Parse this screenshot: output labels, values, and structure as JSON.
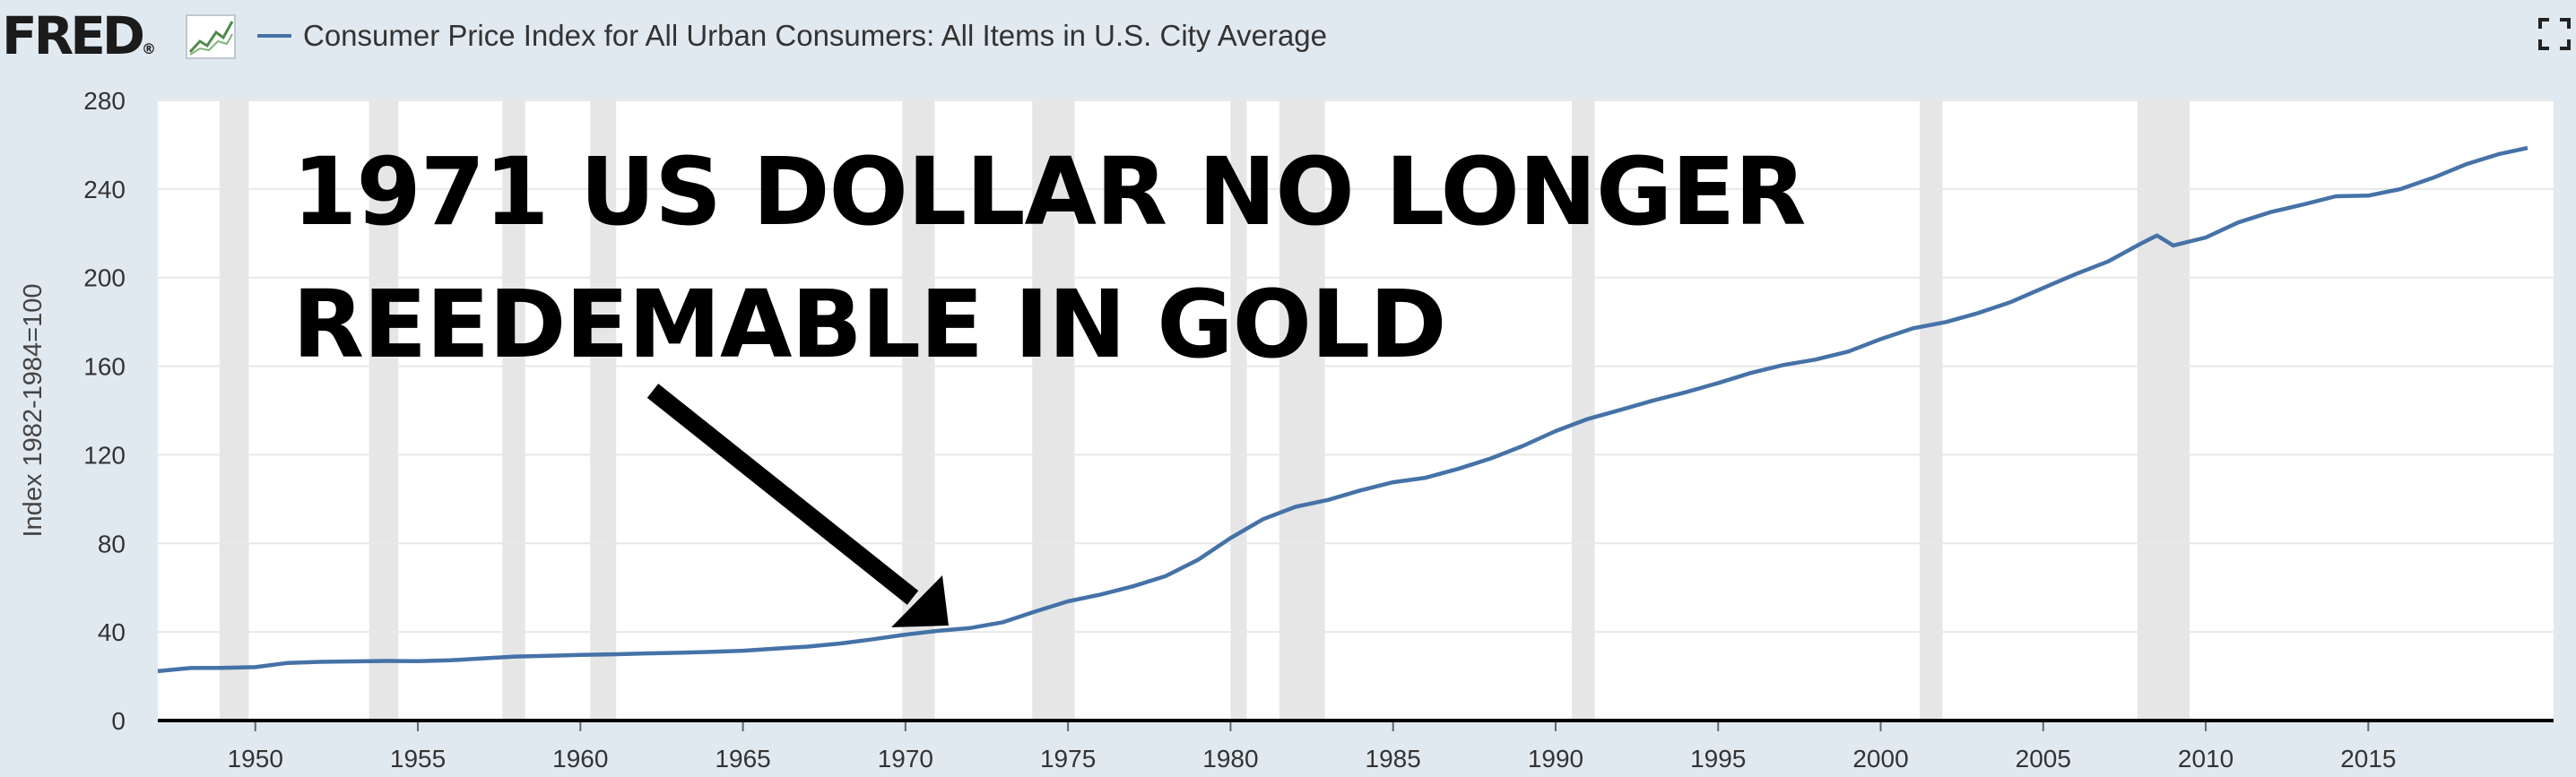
{
  "header": {
    "logo_text": "FRED",
    "logo_mark": "®",
    "logo_icon": "line-graph-icon",
    "series_title": "Consumer Price Index for All Urban Consumers: All Items in U.S. City Average",
    "fullscreen_icon": "fullscreen-icon"
  },
  "annotation": {
    "text": "1971 US DOLLAR NO LONGER REEDEMABLE IN GOLD",
    "arrow_icon": "arrow-icon"
  },
  "colors": {
    "background": "#e1e9f0",
    "plot_background": "#ffffff",
    "series": "#4572a7",
    "recession": "#e6e6e6",
    "annotation": "#000000"
  },
  "chart_data": {
    "type": "line",
    "title": "Consumer Price Index for All Urban Consumers: All Items in U.S. City Average",
    "ylabel": "Index 1982-1984=100",
    "xlabel": "",
    "xlim": [
      1947,
      2020
    ],
    "ylim": [
      0,
      280
    ],
    "y_ticks": [
      0,
      40,
      80,
      120,
      160,
      200,
      240,
      280
    ],
    "x_ticks": [
      1950,
      1955,
      1960,
      1965,
      1970,
      1975,
      1980,
      1985,
      1990,
      1995,
      2000,
      2005,
      2010,
      2015
    ],
    "grid": "horizontal",
    "legend": "top-left",
    "series": [
      {
        "name": "Consumer Price Index for All Urban Consumers: All Items in U.S. City Average",
        "x": [
          1947,
          1948,
          1949,
          1950,
          1951,
          1952,
          1953,
          1954,
          1955,
          1956,
          1957,
          1958,
          1959,
          1960,
          1961,
          1962,
          1963,
          1964,
          1965,
          1966,
          1967,
          1968,
          1969,
          1970,
          1971,
          1972,
          1973,
          1974,
          1975,
          1976,
          1977,
          1978,
          1979,
          1980,
          1981,
          1982,
          1983,
          1984,
          1985,
          1986,
          1987,
          1988,
          1989,
          1990,
          1991,
          1992,
          1993,
          1994,
          1995,
          1996,
          1997,
          1998,
          1999,
          2000,
          2001,
          2002,
          2003,
          2004,
          2005,
          2006,
          2007,
          2008,
          2008.5,
          2009,
          2010,
          2011,
          2012,
          2013,
          2014,
          2015,
          2016,
          2017,
          2018,
          2019,
          2019.9
        ],
        "values": [
          22.3,
          23.7,
          23.8,
          24.1,
          26.0,
          26.5,
          26.7,
          26.9,
          26.8,
          27.2,
          28.1,
          28.9,
          29.2,
          29.6,
          29.9,
          30.3,
          30.6,
          31.0,
          31.5,
          32.5,
          33.4,
          34.8,
          36.7,
          38.8,
          40.5,
          41.8,
          44.4,
          49.3,
          53.8,
          56.9,
          60.6,
          65.2,
          72.6,
          82.4,
          90.9,
          96.5,
          99.6,
          103.9,
          107.6,
          109.6,
          113.6,
          118.3,
          124.0,
          130.7,
          136.2,
          140.3,
          144.5,
          148.2,
          152.4,
          156.9,
          160.5,
          163.0,
          166.6,
          172.2,
          177.1,
          179.9,
          184.0,
          188.9,
          195.3,
          201.6,
          207.3,
          215.3,
          219.0,
          214.5,
          218.1,
          224.9,
          229.6,
          233.0,
          236.7,
          237.0,
          240.0,
          245.1,
          251.1,
          255.7,
          258.5
        ]
      }
    ],
    "recessions": [
      [
        1948.9,
        1949.8
      ],
      [
        1953.5,
        1954.4
      ],
      [
        1957.6,
        1958.3
      ],
      [
        1960.3,
        1961.1
      ],
      [
        1969.9,
        1970.9
      ],
      [
        1973.9,
        1975.2
      ],
      [
        1980.0,
        1980.5
      ],
      [
        1981.5,
        1982.9
      ],
      [
        1990.5,
        1991.2
      ],
      [
        2001.2,
        2001.9
      ],
      [
        2007.9,
        2009.5
      ]
    ]
  }
}
